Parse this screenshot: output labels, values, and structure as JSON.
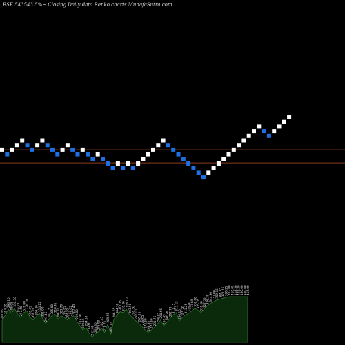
{
  "chart_data": {
    "type": "renko",
    "title": "BSE 543543 5%~  Closing Daily data  Renko  charts MunafaSutra.com",
    "colors": {
      "up": "#ffffff",
      "down": "#1e6fe0",
      "reference_line": "#8a3a1a",
      "volume_fill": "#0b2a0b",
      "volume_line": "#2f7a2f",
      "label": "#e0e0e0"
    },
    "bricks": [
      {
        "dir": "up",
        "level": 304.2
      },
      {
        "dir": "down",
        "level": 297.5
      },
      {
        "dir": "up",
        "level": 304.2
      },
      {
        "dir": "up",
        "level": 310.9
      },
      {
        "dir": "up",
        "level": 317.6
      },
      {
        "dir": "down",
        "level": 310.9
      },
      {
        "dir": "down",
        "level": 304.2
      },
      {
        "dir": "up",
        "level": 310.9
      },
      {
        "dir": "up",
        "level": 317.6
      },
      {
        "dir": "down",
        "level": 310.9
      },
      {
        "dir": "down",
        "level": 304.2
      },
      {
        "dir": "down",
        "level": 297.5
      },
      {
        "dir": "up",
        "level": 304.2
      },
      {
        "dir": "up",
        "level": 310.9
      },
      {
        "dir": "down",
        "level": 304.2
      },
      {
        "dir": "down",
        "level": 297.5
      },
      {
        "dir": "up",
        "level": 304.2
      },
      {
        "dir": "down",
        "level": 297.5
      },
      {
        "dir": "down",
        "level": 290.8
      },
      {
        "dir": "up",
        "level": 297.5
      },
      {
        "dir": "down",
        "level": 290.8
      },
      {
        "dir": "down",
        "level": 284.1
      },
      {
        "dir": "down",
        "level": 277.4
      },
      {
        "dir": "up",
        "level": 284.1
      },
      {
        "dir": "down",
        "level": 277.4
      },
      {
        "dir": "up",
        "level": 284.1
      },
      {
        "dir": "down",
        "level": 277.4
      },
      {
        "dir": "up",
        "level": 284.1
      },
      {
        "dir": "up",
        "level": 290.8
      },
      {
        "dir": "up",
        "level": 297.5
      },
      {
        "dir": "up",
        "level": 304.2
      },
      {
        "dir": "up",
        "level": 310.9
      },
      {
        "dir": "up",
        "level": 317.6
      },
      {
        "dir": "down",
        "level": 310.9
      },
      {
        "dir": "down",
        "level": 304.2
      },
      {
        "dir": "down",
        "level": 297.5
      },
      {
        "dir": "down",
        "level": 290.8
      },
      {
        "dir": "down",
        "level": 284.1
      },
      {
        "dir": "down",
        "level": 277.4
      },
      {
        "dir": "down",
        "level": 270.7
      },
      {
        "dir": "down",
        "level": 264.0
      },
      {
        "dir": "up",
        "level": 270.7
      },
      {
        "dir": "up",
        "level": 277.4
      },
      {
        "dir": "up",
        "level": 284.1
      },
      {
        "dir": "up",
        "level": 290.8
      },
      {
        "dir": "up",
        "level": 297.5
      },
      {
        "dir": "up",
        "level": 304.2
      },
      {
        "dir": "up",
        "level": 310.9
      },
      {
        "dir": "up",
        "level": 317.6
      },
      {
        "dir": "up",
        "level": 324.3
      },
      {
        "dir": "up",
        "level": 331.0
      },
      {
        "dir": "up",
        "level": 337.7
      },
      {
        "dir": "down",
        "level": 331.0
      },
      {
        "dir": "down",
        "level": 324.3
      },
      {
        "dir": "up",
        "level": 331.0
      },
      {
        "dir": "up",
        "level": 337.7
      },
      {
        "dir": "up",
        "level": 344.4
      },
      {
        "dir": "up",
        "level": 351.1
      }
    ],
    "reference_lines": [
      303.0,
      284.0
    ],
    "bottom_labels": [
      "310.45",
      "304.20",
      "296.10",
      "306.95",
      "330.50",
      "314.25",
      "297.50",
      "316.00",
      "320.10",
      "310.45",
      "304.20",
      "309.80",
      "314.25",
      "301.00",
      "291.45",
      "300.15",
      "305.00",
      "310.45",
      "296.10",
      "303.70",
      "299.65",
      "294.30",
      "299.05",
      "302.40",
      "292.80",
      "287.50",
      "280.15",
      "284.80",
      "273.60",
      "262.60",
      "268.30",
      "275.00",
      "282.45",
      "270.25",
      "289.55",
      "266.00",
      "296.05",
      "304.30",
      "312.75",
      "310.40",
      "316.10",
      "303.50",
      "298.30",
      "292.10",
      "285.15",
      "278.65",
      "272.50",
      "268.85",
      "274.50",
      "281.75",
      "290.05",
      "298.65",
      "286.45",
      "294.30",
      "302.70",
      "311.15",
      "317.15",
      "296.10",
      "305.20",
      "311.25",
      "316.40",
      "322.60",
      "330.00",
      "325.05",
      "318.60",
      "327.55",
      "336.30",
      "344.90",
      "351.00",
      "359.15",
      "366.05",
      "372.45",
      "380.25",
      "402.00",
      "410.05",
      "418.30",
      "425.20",
      "430.00",
      "450.00",
      "455.00"
    ],
    "label_levels": [
      0.42,
      0.55,
      0.7,
      0.6,
      0.72,
      0.58,
      0.5,
      0.62,
      0.66,
      0.5,
      0.44,
      0.52,
      0.6,
      0.48,
      0.36,
      0.45,
      0.54,
      0.58,
      0.46,
      0.54,
      0.5,
      0.44,
      0.5,
      0.54,
      0.42,
      0.3,
      0.2,
      0.26,
      0.12,
      0.03,
      0.1,
      0.16,
      0.24,
      0.14,
      0.34,
      0.1,
      0.46,
      0.56,
      0.64,
      0.62,
      0.7,
      0.56,
      0.5,
      0.42,
      0.36,
      0.28,
      0.2,
      0.14,
      0.2,
      0.26,
      0.34,
      0.44,
      0.3,
      0.38,
      0.48,
      0.56,
      0.62,
      0.42,
      0.5,
      0.56,
      0.6,
      0.66,
      0.72,
      0.68,
      0.62,
      0.7,
      0.78,
      0.84,
      0.88,
      0.92,
      0.94,
      0.96,
      0.98,
      1.0,
      1.0,
      1.0,
      1.0,
      1.0,
      1.0,
      1.0
    ]
  }
}
